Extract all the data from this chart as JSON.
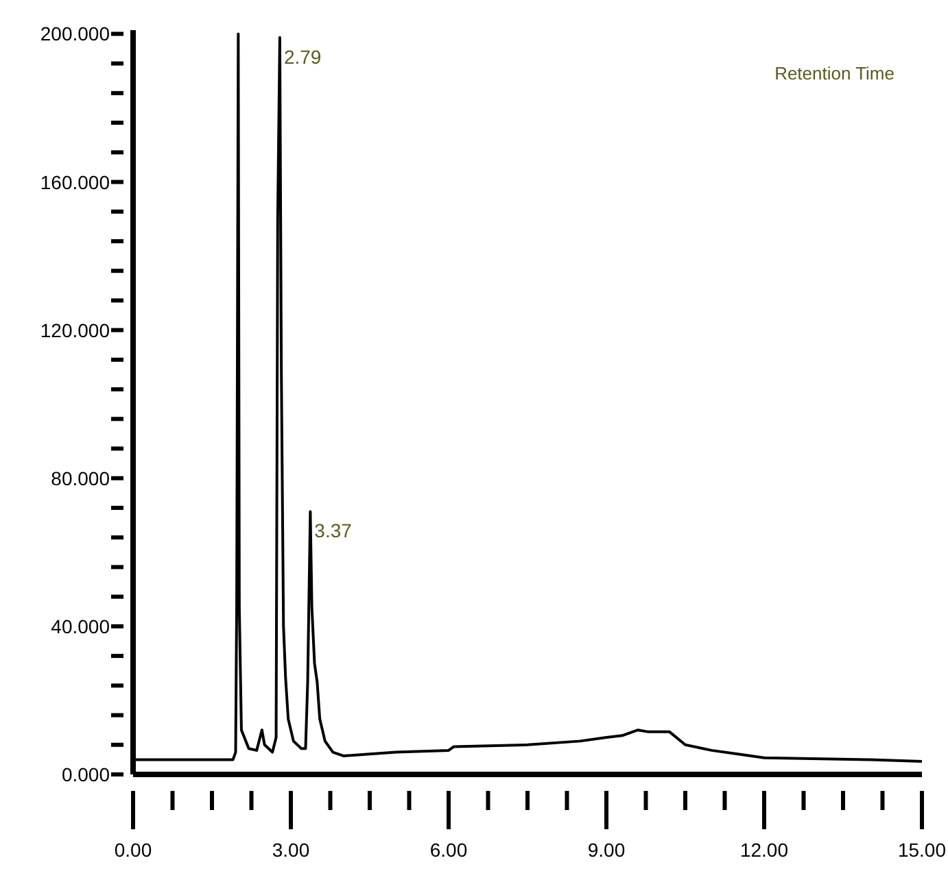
{
  "chart_data": {
    "type": "line",
    "color": "#000000",
    "marker": "none",
    "x": [
      0,
      1.9,
      1.95,
      1.97,
      2.0,
      2.02,
      2.06,
      2.2,
      2.35,
      2.45,
      2.5,
      2.65,
      2.72,
      2.75,
      2.79,
      2.82,
      2.86,
      2.9,
      2.95,
      3.05,
      3.2,
      3.28,
      3.32,
      3.37,
      3.4,
      3.45,
      3.5,
      3.55,
      3.65,
      3.8,
      4.0,
      4.5,
      5.0,
      6.0,
      6.1,
      7.5,
      8.5,
      9.0,
      9.3,
      9.6,
      9.8,
      10.2,
      10.5,
      11.0,
      11.5,
      12.0,
      14.0,
      15.0
    ],
    "values": [
      4,
      4,
      6,
      45,
      200,
      45,
      12,
      7,
      6.5,
      12,
      8,
      6,
      10,
      150,
      199,
      108,
      40,
      26,
      15,
      9,
      7,
      7,
      25,
      71,
      45,
      30,
      25,
      15,
      9,
      6,
      5,
      5.5,
      6,
      6.5,
      7.5,
      8,
      9,
      10,
      10.5,
      12,
      11.5,
      11.5,
      8,
      6.5,
      5.5,
      4.5,
      4,
      3.5
    ],
    "xlim": [
      0,
      15
    ],
    "xticks": [
      {
        "value": 0,
        "label": "0.00"
      },
      {
        "value": 0.75,
        "label": null
      },
      {
        "value": 1.5,
        "label": null
      },
      {
        "value": 2.25,
        "label": null
      },
      {
        "value": 3,
        "label": "3.00"
      },
      {
        "value": 3.75,
        "label": null
      },
      {
        "value": 4.5,
        "label": null
      },
      {
        "value": 5.25,
        "label": null
      },
      {
        "value": 6,
        "label": "6.00"
      },
      {
        "value": 6.75,
        "label": null
      },
      {
        "value": 7.5,
        "label": null
      },
      {
        "value": 8.25,
        "label": null
      },
      {
        "value": 9,
        "label": "9.00"
      },
      {
        "value": 9.75,
        "label": null
      },
      {
        "value": 10.5,
        "label": null
      },
      {
        "value": 11.25,
        "label": null
      },
      {
        "value": 12,
        "label": "12.00"
      },
      {
        "value": 12.75,
        "label": null
      },
      {
        "value": 13.5,
        "label": null
      },
      {
        "value": 14.25,
        "label": null
      },
      {
        "value": 15,
        "label": "15.00"
      }
    ],
    "ylim": [
      0,
      201
    ],
    "yticks": [
      {
        "value": 0,
        "label": "0.000"
      },
      {
        "value": 8,
        "label": null
      },
      {
        "value": 16,
        "label": null
      },
      {
        "value": 24,
        "label": null
      },
      {
        "value": 32,
        "label": null
      },
      {
        "value": 40,
        "label": "40.000"
      },
      {
        "value": 48,
        "label": null
      },
      {
        "value": 56,
        "label": null
      },
      {
        "value": 64,
        "label": null
      },
      {
        "value": 72,
        "label": null
      },
      {
        "value": 80,
        "label": "80.000"
      },
      {
        "value": 88,
        "label": null
      },
      {
        "value": 96,
        "label": null
      },
      {
        "value": 104,
        "label": null
      },
      {
        "value": 112,
        "label": null
      },
      {
        "value": 120,
        "label": "120.000"
      },
      {
        "value": 128,
        "label": null
      },
      {
        "value": 136,
        "label": null
      },
      {
        "value": 144,
        "label": null
      },
      {
        "value": 152,
        "label": null
      },
      {
        "value": 160,
        "label": "160.000"
      },
      {
        "value": 168,
        "label": null
      },
      {
        "value": 176,
        "label": null
      },
      {
        "value": 184,
        "label": null
      },
      {
        "value": 192,
        "label": null
      },
      {
        "value": 200,
        "label": "200.000"
      }
    ],
    "annotations": [
      {
        "text": "2.79",
        "x": 2.79,
        "y": 199
      },
      {
        "text": "3.37",
        "x": 3.37,
        "y": 71
      },
      "Retention Time"
    ]
  }
}
